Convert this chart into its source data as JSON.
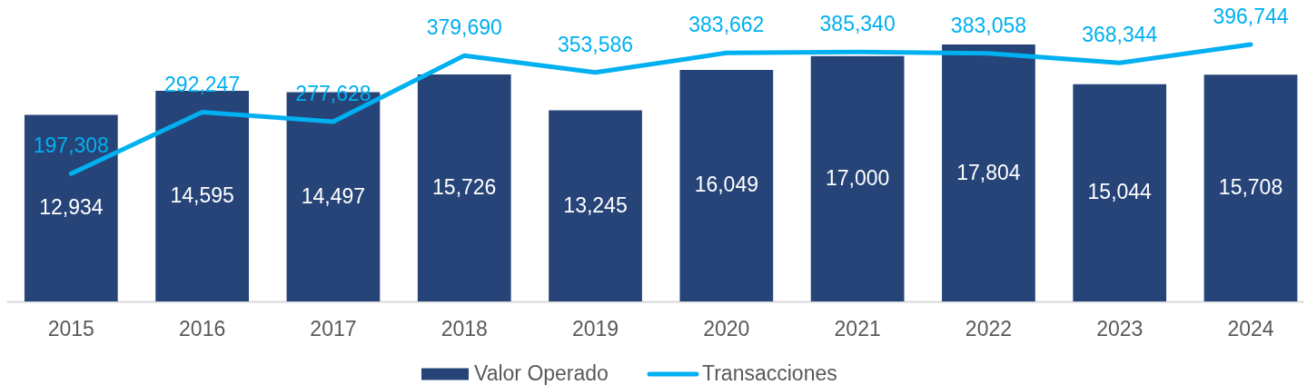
{
  "chart_data": {
    "type": "bar",
    "categories": [
      "2015",
      "2016",
      "2017",
      "2018",
      "2019",
      "2020",
      "2021",
      "2022",
      "2023",
      "2024"
    ],
    "series": [
      {
        "name": "Valor Operado",
        "color": "#264478",
        "values": [
          12934,
          14595,
          14497,
          15726,
          13245,
          16049,
          17000,
          17804,
          15044,
          15708
        ],
        "value_labels": [
          "12,934",
          "14,595",
          "14,497",
          "15,726",
          "13,245",
          "16,049",
          "17,000",
          "17,804",
          "15,044",
          "15,708"
        ]
      },
      {
        "name": "Transacciones",
        "type": "line",
        "axis": "y2",
        "color": "#00b0f0",
        "values": [
          197308,
          292247,
          277628,
          379690,
          353586,
          383662,
          385340,
          383058,
          368344,
          396744
        ],
        "value_labels": [
          "197,308",
          "292,247",
          "277,628",
          "379,690",
          "353,586",
          "383,662",
          "385,340",
          "383,058",
          "368,344",
          "396,744"
        ]
      }
    ],
    "tick_labels": "x",
    "legend": "bottom"
  }
}
